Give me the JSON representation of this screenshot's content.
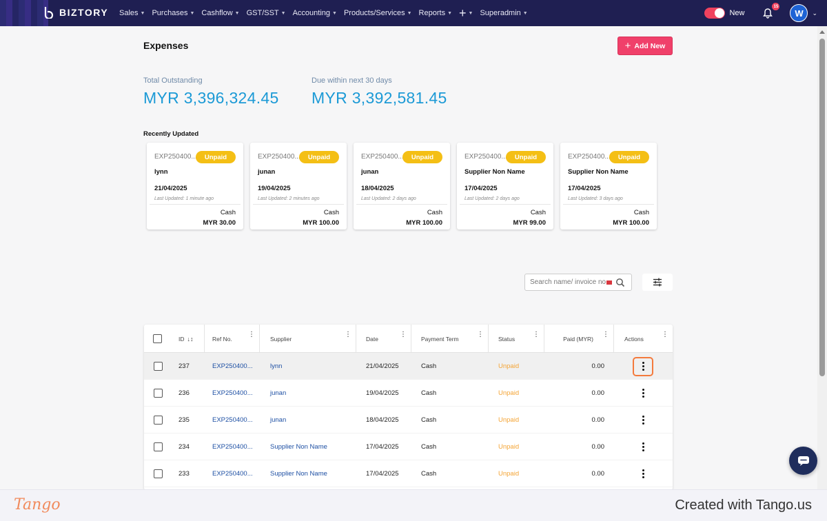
{
  "nav": {
    "brand": "BIZTORY",
    "menu": [
      {
        "label": "Sales"
      },
      {
        "label": "Purchases"
      },
      {
        "label": "Cashflow"
      },
      {
        "label": "GST/SST"
      },
      {
        "label": "Accounting"
      },
      {
        "label": "Products/Services"
      },
      {
        "label": "Reports"
      },
      {
        "label": "+"
      },
      {
        "label": "Superadmin"
      }
    ],
    "toggle_label": "New",
    "notification_count": "15",
    "avatar_initial": "W"
  },
  "page": {
    "title": "Expenses",
    "add_button": "Add New"
  },
  "stats": {
    "outstanding_label": "Total Outstanding",
    "outstanding_value": "MYR 3,396,324.45",
    "due_label": "Due within next 30 days",
    "due_value": "MYR 3,392,581.45"
  },
  "recent": {
    "title": "Recently Updated",
    "cards": [
      {
        "ref": "EXP250400...",
        "status": "Unpaid",
        "name": "lynn",
        "date": "21/04/2025",
        "updated": "Last Updated: 1 minute ago",
        "term": "Cash",
        "amount": "MYR 30.00"
      },
      {
        "ref": "EXP250400...",
        "status": "Unpaid",
        "name": "junan",
        "date": "19/04/2025",
        "updated": "Last Updated: 2 minutes ago",
        "term": "Cash",
        "amount": "MYR 100.00"
      },
      {
        "ref": "EXP250400...",
        "status": "Unpaid",
        "name": "junan",
        "date": "18/04/2025",
        "updated": "Last Updated: 2 days ago",
        "term": "Cash",
        "amount": "MYR 100.00"
      },
      {
        "ref": "EXP250400...",
        "status": "Unpaid",
        "name": "Supplier Non Name",
        "date": "17/04/2025",
        "updated": "Last Updated: 2 days ago",
        "term": "Cash",
        "amount": "MYR 99.00"
      },
      {
        "ref": "EXP250400...",
        "status": "Unpaid",
        "name": "Supplier Non Name",
        "date": "17/04/2025",
        "updated": "Last Updated: 3 days ago",
        "term": "Cash",
        "amount": "MYR 100.00"
      }
    ]
  },
  "search": {
    "placeholder": "Search name/ invoice no."
  },
  "table": {
    "columns": {
      "id": "ID",
      "ref": "Ref No.",
      "supplier": "Supplier",
      "date": "Date",
      "term": "Payment Term",
      "status": "Status",
      "paid": "Paid (MYR)",
      "actions": "Actions"
    },
    "rows": [
      {
        "id": "237",
        "ref": "EXP250400...",
        "supplier": "lynn",
        "date": "21/04/2025",
        "term": "Cash",
        "status": "Unpaid",
        "paid": "0.00"
      },
      {
        "id": "236",
        "ref": "EXP250400...",
        "supplier": "junan",
        "date": "19/04/2025",
        "term": "Cash",
        "status": "Unpaid",
        "paid": "0.00"
      },
      {
        "id": "235",
        "ref": "EXP250400...",
        "supplier": "junan",
        "date": "18/04/2025",
        "term": "Cash",
        "status": "Unpaid",
        "paid": "0.00"
      },
      {
        "id": "234",
        "ref": "EXP250400...",
        "supplier": "Supplier Non Name",
        "date": "17/04/2025",
        "term": "Cash",
        "status": "Unpaid",
        "paid": "0.00"
      },
      {
        "id": "233",
        "ref": "EXP250400...",
        "supplier": "Supplier Non Name",
        "date": "17/04/2025",
        "term": "Cash",
        "status": "Unpaid",
        "paid": "0.00"
      }
    ]
  },
  "footer": {
    "logo": "Tango",
    "credit": "Created with Tango.us"
  },
  "colors": {
    "nav_bg": "#1f1f52",
    "accent": "#f0406a",
    "stat_value": "#1c9ad6",
    "unpaid_pill": "#f4bf15",
    "unpaid_text": "#f4a435",
    "link": "#1d4fa3",
    "highlight": "#f47a3c"
  }
}
